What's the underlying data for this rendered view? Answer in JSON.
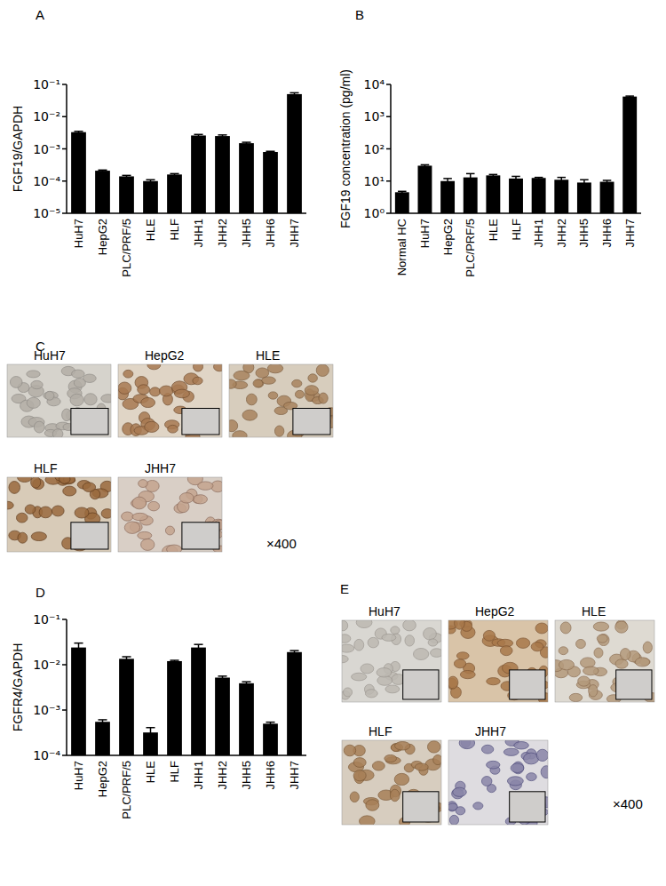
{
  "chart_data": [
    {
      "type": "bar",
      "title": "A",
      "ylabel": "FGF19/GAPDH",
      "categories": [
        "HuH7",
        "HepG2",
        "PLC/PRF/5",
        "HLE",
        "HLF",
        "JHH1",
        "JHH2",
        "JHH5",
        "JHH6",
        "JHH7"
      ],
      "values": [
        0.0033,
        0.00021,
        0.00014,
        0.0001,
        0.00016,
        0.0026,
        0.0025,
        0.0015,
        0.0008,
        0.05
      ],
      "errors": [
        0.0002,
        1e-05,
        1e-05,
        1e-05,
        1e-05,
        0.0002,
        0.0002,
        0.0001,
        4e-05,
        0.005
      ],
      "color": "#000000",
      "log": "y",
      "ylim": [
        1e-05,
        0.1
      ],
      "yticks": [
        {
          "value": 1e-05,
          "label": "10⁻⁵"
        },
        {
          "value": 0.0001,
          "label": "10⁻⁴"
        },
        {
          "value": 0.001,
          "label": "10⁻³"
        },
        {
          "value": 0.01,
          "label": "10⁻²"
        },
        {
          "value": 0.1,
          "label": "10⁻¹"
        }
      ]
    },
    {
      "type": "bar",
      "title": "B",
      "ylabel": "FGF19 concentration (pg/ml)",
      "categories": [
        "Normal HC",
        "HuH7",
        "HepG2",
        "PLC/PRF/5",
        "HLE",
        "HLF",
        "JHH1",
        "JHH2",
        "JHH5",
        "JHH6",
        "JHH7"
      ],
      "values": [
        4.5,
        30,
        10,
        13,
        15,
        12,
        12.5,
        11,
        9,
        9.5,
        4200
      ],
      "errors": [
        0.3,
        2,
        2,
        4,
        1,
        2,
        0.5,
        2,
        2,
        1,
        150
      ],
      "color": "#000000",
      "log": "y",
      "ylim": [
        1,
        10000
      ],
      "yticks": [
        {
          "value": 1,
          "label": "10⁰"
        },
        {
          "value": 10,
          "label": "10¹"
        },
        {
          "value": 100,
          "label": "10²"
        },
        {
          "value": 1000,
          "label": "10³"
        },
        {
          "value": 10000,
          "label": "10⁴"
        }
      ]
    },
    {
      "type": "bar",
      "title": "D",
      "ylabel": "FGFR4/GAPDH",
      "categories": [
        "HuH7",
        "HepG2",
        "PLC/PRF/5",
        "HLE",
        "HLF",
        "JHH1",
        "JHH2",
        "JHH5",
        "JHH6",
        "JHH7"
      ],
      "values": [
        0.024,
        0.00055,
        0.0135,
        0.00032,
        0.012,
        0.024,
        0.0052,
        0.0039,
        0.0005,
        0.019
      ],
      "errors": [
        0.006,
        6e-05,
        0.0015,
        9e-05,
        0.0005,
        0.004,
        0.0004,
        0.0003,
        4e-05,
        0.0015
      ],
      "color": "#000000",
      "log": "y",
      "ylim": [
        0.0001,
        0.1
      ],
      "yticks": [
        {
          "value": 0.0001,
          "label": "10⁻⁴"
        },
        {
          "value": 0.001,
          "label": "10⁻³"
        },
        {
          "value": 0.01,
          "label": "10⁻²"
        },
        {
          "value": 0.1,
          "label": "10⁻¹"
        }
      ]
    }
  ],
  "micrographs": [
    {
      "label": "C",
      "images": [
        "HuH7",
        "HepG2",
        "HLE",
        "HLF",
        "JHH7"
      ],
      "magnification": "×400"
    },
    {
      "label": "E",
      "images": [
        "HuH7",
        "HepG2",
        "HLE",
        "HLF",
        "JHH7"
      ],
      "magnification": "×400"
    }
  ]
}
